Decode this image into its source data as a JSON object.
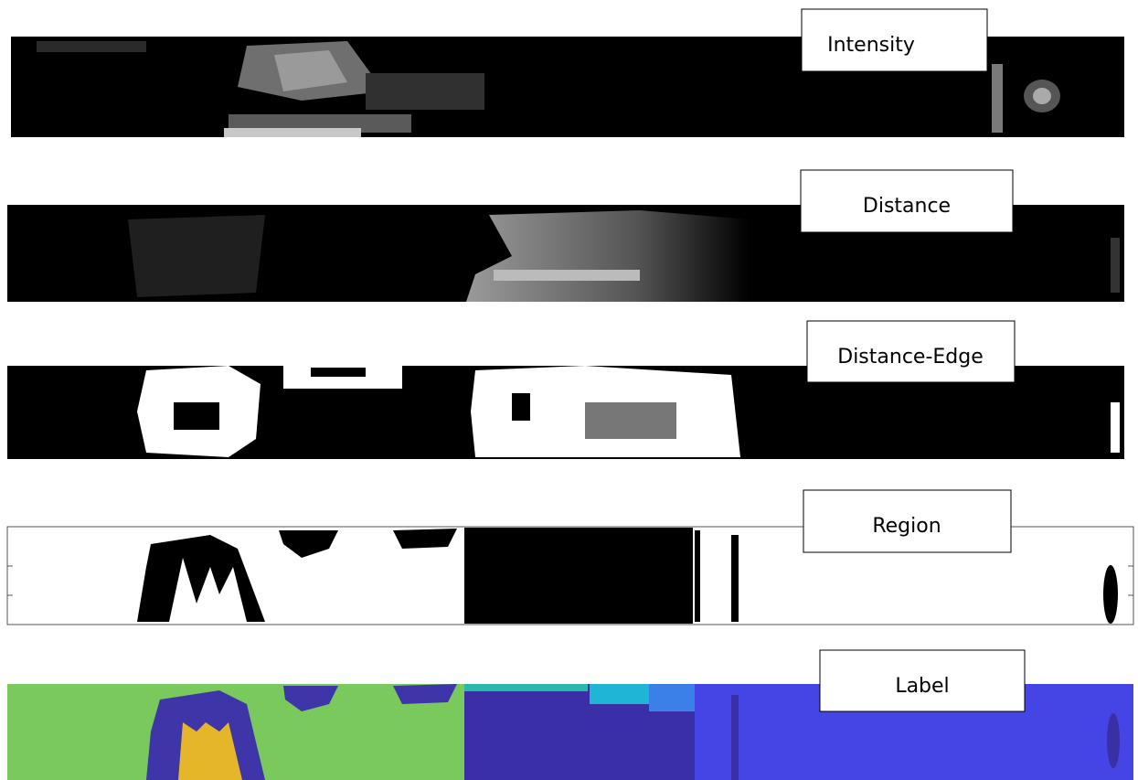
{
  "panels": [
    {
      "label": "Intensity"
    },
    {
      "label": "Distance"
    },
    {
      "label": "Distance-Edge"
    },
    {
      "label": "Region"
    },
    {
      "label": "Label"
    }
  ]
}
